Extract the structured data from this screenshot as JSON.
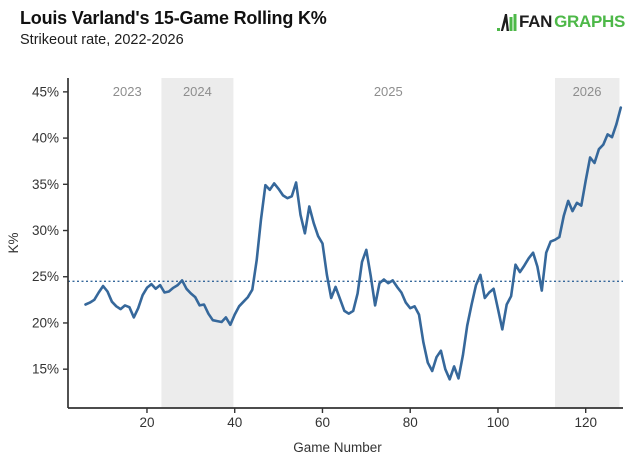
{
  "header": {
    "title": "Louis Varland's 15-Game Rolling K%",
    "subtitle": "Strikeout rate, 2022-2026",
    "logo": {
      "fan": "FAN",
      "graphs": "GRAPHS"
    }
  },
  "chart_data": {
    "type": "line",
    "title": "Louis Varland's 15-Game Rolling K%",
    "subtitle": "Strikeout rate, 2022-2026",
    "xlabel": "Game Number",
    "ylabel": "K%",
    "xlim": [
      2,
      128.5
    ],
    "ylim": [
      10.8,
      46.5
    ],
    "x_ticks": [
      20,
      40,
      60,
      80,
      100,
      120
    ],
    "y_ticks": [
      15,
      20,
      25,
      30,
      35,
      40,
      45
    ],
    "y_tick_suffix": "%",
    "grid": false,
    "line_color": "#36689b",
    "axis_color": "#333333",
    "tick_label_color": "#333333",
    "year_label_color": "#8e8e8e",
    "band_color": "#ececec",
    "reference_line": {
      "value": 24.5,
      "color": "#36689b",
      "style": "dotted"
    },
    "year_regions": [
      {
        "label": "2023",
        "label_x": 15.5,
        "shaded": false
      },
      {
        "label": "2024",
        "label_x": 31.5,
        "shaded": true,
        "start": 23.3,
        "end": 39.7
      },
      {
        "label": "2025",
        "label_x": 75,
        "shaded": false
      },
      {
        "label": "2026",
        "label_x": 120.3,
        "shaded": true,
        "start": 113.0,
        "end": 127.7
      }
    ],
    "series": [
      {
        "name": "15-game rolling K%",
        "x": [
          6,
          7,
          8,
          9,
          10,
          11,
          12,
          13,
          14,
          15,
          16,
          17,
          18,
          19,
          20,
          21,
          22,
          23,
          24,
          25,
          26,
          27,
          28,
          29,
          30,
          31,
          32,
          33,
          34,
          35,
          36,
          37,
          38,
          39,
          40,
          41,
          42,
          43,
          44,
          45,
          46,
          47,
          48,
          49,
          50,
          51,
          52,
          53,
          54,
          55,
          56,
          57,
          58,
          59,
          60,
          61,
          62,
          63,
          64,
          65,
          66,
          67,
          68,
          69,
          70,
          71,
          72,
          73,
          74,
          75,
          76,
          77,
          78,
          79,
          80,
          81,
          82,
          83,
          84,
          85,
          86,
          87,
          88,
          89,
          90,
          91,
          92,
          93,
          94,
          95,
          96,
          97,
          98,
          99,
          100,
          101,
          102,
          103,
          104,
          105,
          106,
          107,
          108,
          109,
          110,
          111,
          112,
          113,
          114,
          115,
          116,
          117,
          118,
          119,
          120,
          121,
          122,
          123,
          124,
          125,
          126,
          127,
          128
        ],
        "values": [
          22.0,
          22.2,
          22.5,
          23.3,
          24.0,
          23.4,
          22.3,
          21.8,
          21.5,
          21.9,
          21.7,
          20.6,
          21.6,
          23.0,
          23.8,
          24.2,
          23.7,
          24.1,
          23.3,
          23.4,
          23.8,
          24.1,
          24.6,
          23.7,
          23.2,
          22.8,
          21.9,
          22.0,
          21.0,
          20.3,
          20.2,
          20.1,
          20.6,
          19.8,
          20.9,
          21.8,
          22.3,
          22.8,
          23.6,
          26.8,
          31.2,
          34.9,
          34.4,
          35.1,
          34.5,
          33.8,
          33.5,
          33.7,
          35.2,
          31.7,
          29.7,
          32.6,
          30.8,
          29.4,
          28.6,
          25.2,
          22.7,
          23.9,
          22.6,
          21.3,
          21.0,
          21.3,
          23.2,
          26.6,
          27.9,
          25.1,
          21.9,
          24.3,
          24.7,
          24.3,
          24.6,
          23.9,
          23.3,
          22.2,
          21.6,
          21.8,
          20.9,
          17.9,
          15.7,
          14.8,
          16.3,
          17.0,
          15.0,
          13.9,
          15.3,
          14.0,
          16.5,
          19.7,
          22.0,
          24.1,
          25.2,
          22.7,
          23.3,
          23.7,
          21.5,
          19.3,
          22.0,
          22.9,
          26.3,
          25.5,
          26.2,
          27.0,
          27.6,
          26.1,
          23.5,
          27.6,
          28.8,
          29.0,
          29.3,
          31.6,
          33.2,
          32.1,
          33.0,
          32.7,
          35.4,
          37.9,
          37.3,
          38.8,
          39.3,
          40.4,
          40.1,
          41.5,
          43.3
        ]
      }
    ]
  }
}
